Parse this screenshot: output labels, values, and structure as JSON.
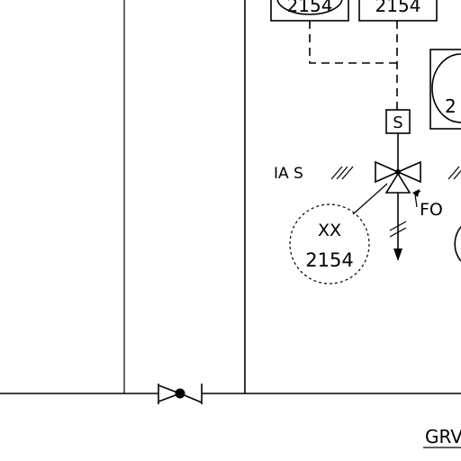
{
  "diagram": {
    "top_boxes": [
      {
        "label": "2154"
      },
      {
        "label": "2154"
      }
    ],
    "right_bubble": {
      "label": "2"
    },
    "solenoid": {
      "label": "S"
    },
    "air_supply": {
      "label": "IA S"
    },
    "fail_position": {
      "label": "FO"
    },
    "valve_tag": {
      "type": "XX",
      "number": "2154"
    },
    "title_fragment": {
      "label": "GRV"
    }
  }
}
